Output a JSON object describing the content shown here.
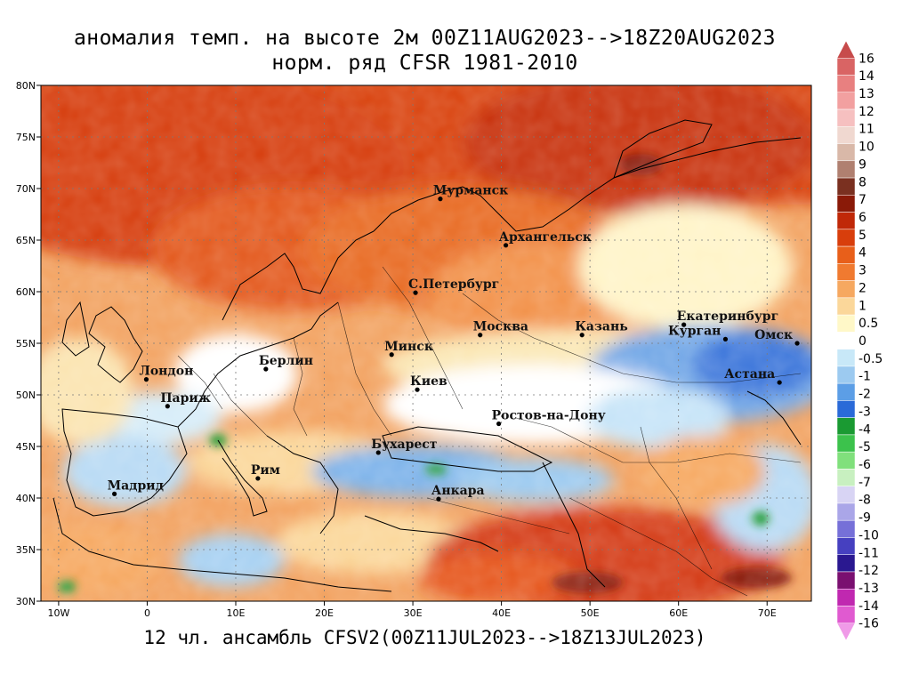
{
  "title_line1": "аномалия темп. на высоте 2м 00Z11AUG2023-->18Z20AUG2023",
  "title_line2": "норм. ряд CFSR 1981-2010",
  "footer": "12 чл. ансамбль CFSV2(00Z11JUL2023-->18Z13JUL2023)",
  "map": {
    "lon_range": [
      -12,
      75
    ],
    "lat_range": [
      30,
      80
    ],
    "lon_ticks": [
      "10W",
      "0",
      "10E",
      "20E",
      "30E",
      "40E",
      "50E",
      "60E",
      "70E"
    ],
    "lat_ticks": [
      "30N",
      "35N",
      "40N",
      "45N",
      "50N",
      "55N",
      "60N",
      "65N",
      "70N",
      "75N",
      "80N"
    ],
    "grid": "dotted"
  },
  "cities": [
    {
      "name": "Мурманск",
      "lon": 33.1,
      "lat": 69.0
    },
    {
      "name": "Архангельск",
      "lon": 40.5,
      "lat": 64.5
    },
    {
      "name": "С.Петербург",
      "lon": 30.3,
      "lat": 59.9
    },
    {
      "name": "Москва",
      "lon": 37.6,
      "lat": 55.8
    },
    {
      "name": "Казань",
      "lon": 49.1,
      "lat": 55.8
    },
    {
      "name": "Екатеринбург",
      "lon": 60.6,
      "lat": 56.8
    },
    {
      "name": "Курган",
      "lon": 65.3,
      "lat": 55.4
    },
    {
      "name": "Омск",
      "lon": 73.4,
      "lat": 55.0
    },
    {
      "name": "Астана",
      "lon": 71.4,
      "lat": 51.2
    },
    {
      "name": "Минск",
      "lon": 27.6,
      "lat": 53.9
    },
    {
      "name": "Берлин",
      "lon": 13.4,
      "lat": 52.5
    },
    {
      "name": "Лондон",
      "lon": -0.1,
      "lat": 51.5
    },
    {
      "name": "Париж",
      "lon": 2.3,
      "lat": 48.9
    },
    {
      "name": "Киев",
      "lon": 30.5,
      "lat": 50.5
    },
    {
      "name": "Ростов-на-Дону",
      "lon": 39.7,
      "lat": 47.2
    },
    {
      "name": "Бухарест",
      "lon": 26.1,
      "lat": 44.4
    },
    {
      "name": "Рим",
      "lon": 12.5,
      "lat": 41.9
    },
    {
      "name": "Мадрид",
      "lon": -3.7,
      "lat": 40.4
    },
    {
      "name": "Анкара",
      "lon": 32.9,
      "lat": 39.9
    }
  ],
  "colorbar": {
    "labels": [
      "16",
      "14",
      "13",
      "12",
      "11",
      "10",
      "9",
      "8",
      "7",
      "6",
      "5",
      "4",
      "3",
      "2",
      "1",
      "0.5",
      "0",
      "-0.5",
      "-1",
      "-2",
      "-3",
      "-4",
      "-5",
      "-6",
      "-7",
      "-8",
      "-9",
      "-10",
      "-11",
      "-12",
      "-13",
      "-14",
      "-16"
    ],
    "colors": [
      "#c74b4b",
      "#d96464",
      "#e88080",
      "#f2a0a0",
      "#f6c0c0",
      "#f0d8d0",
      "#d9b8a8",
      "#b08070",
      "#7a3020",
      "#8a1a08",
      "#c02808",
      "#d83e0c",
      "#e85f1a",
      "#f07a30",
      "#f6a860",
      "#fbd79a",
      "#fff8c8",
      "#ffffff",
      "#c8e8f8",
      "#9ccaf0",
      "#5c9ee6",
      "#2a6ad8",
      "#1a9a32",
      "#3cc24c",
      "#80e07c",
      "#c8f0c0",
      "#d8d4f4",
      "#aaa6e8",
      "#7670d8",
      "#4640c0",
      "#2a1890",
      "#7a1070",
      "#c028b0",
      "#e05ad0",
      "#f09ae8"
    ]
  }
}
